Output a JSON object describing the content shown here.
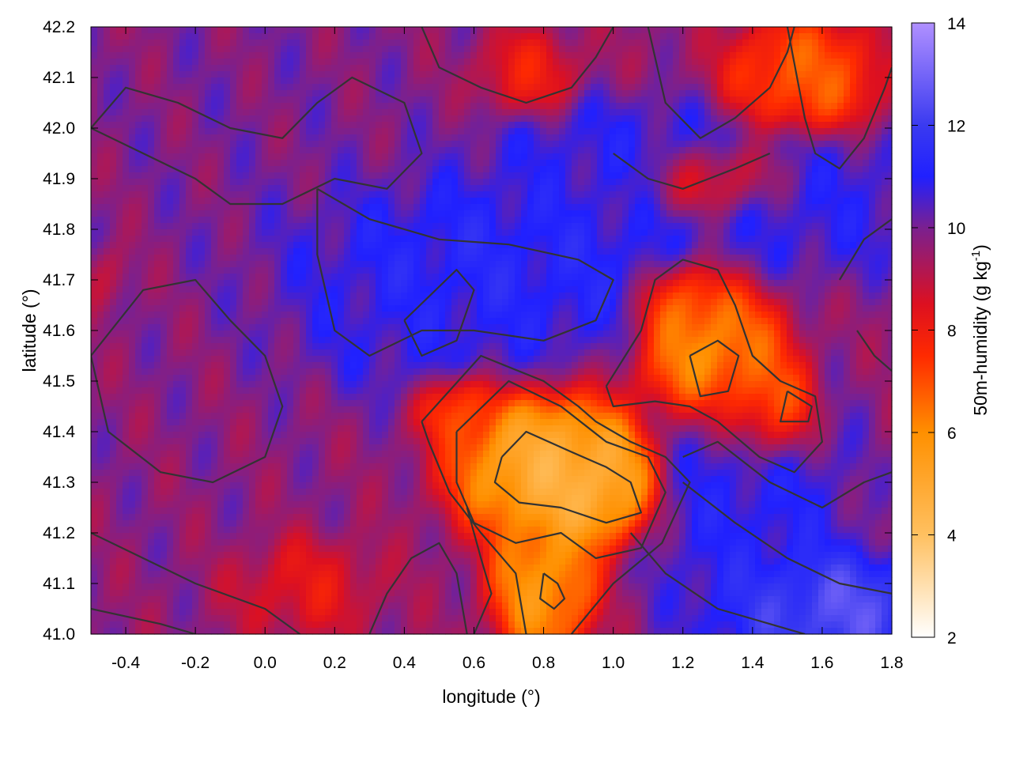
{
  "chart_data": {
    "type": "heatmap",
    "xlabel": "longitude (°)",
    "ylabel": "latitude (°)",
    "colorbar_label_main": "50m-humidity (g kg",
    "colorbar_label_sup": "-1",
    "colorbar_label_close": ")",
    "xlim": [
      -0.5,
      1.8
    ],
    "ylim": [
      41.0,
      42.2
    ],
    "x_ticks": [
      -0.4,
      -0.2,
      0.0,
      0.2,
      0.4,
      0.6,
      0.8,
      1.0,
      1.2,
      1.4,
      1.6,
      1.8
    ],
    "x_tick_labels": [
      "-0.4",
      "-0.2",
      "0.0",
      "0.2",
      "0.4",
      "0.6",
      "0.8",
      "1.0",
      "1.2",
      "1.4",
      "1.6",
      "1.8"
    ],
    "y_ticks": [
      41.0,
      41.1,
      41.2,
      41.3,
      41.4,
      41.5,
      41.6,
      41.7,
      41.8,
      41.9,
      42.0,
      42.1,
      42.2
    ],
    "y_tick_labels": [
      "41.0",
      "41.1",
      "41.2",
      "41.3",
      "41.4",
      "41.5",
      "41.6",
      "41.7",
      "41.8",
      "41.9",
      "42.0",
      "42.1",
      "42.2"
    ],
    "colorbar_range": [
      2,
      14
    ],
    "colorbar_ticks": [
      2,
      4,
      6,
      8,
      10,
      12,
      14
    ],
    "colorbar_tick_labels": [
      "2",
      "4",
      "6",
      "8",
      "10",
      "12",
      "14"
    ],
    "colormap": [
      {
        "v": 2,
        "color": "#ffffff"
      },
      {
        "v": 4,
        "color": "#ffc060"
      },
      {
        "v": 6,
        "color": "#ff9000"
      },
      {
        "v": 7.5,
        "color": "#ff2a00"
      },
      {
        "v": 8.5,
        "color": "#dd1020"
      },
      {
        "v": 10,
        "color": "#7a2090"
      },
      {
        "v": 11,
        "color": "#2020ff"
      },
      {
        "v": 12,
        "color": "#3a3af0"
      },
      {
        "v": 14,
        "color": "#b090ff"
      }
    ],
    "contour_color": "#333333",
    "field_features": [
      {
        "lon": -0.3,
        "lat": 41.45,
        "value": 9.8,
        "sx": 0.45,
        "sy": 0.3
      },
      {
        "lon": 0.0,
        "lat": 41.95,
        "value": 10.0,
        "sx": 0.4,
        "sy": 0.25
      },
      {
        "lon": 0.4,
        "lat": 41.75,
        "value": 11.5,
        "sx": 0.35,
        "sy": 0.12
      },
      {
        "lon": 0.8,
        "lat": 41.72,
        "value": 11.3,
        "sx": 0.35,
        "sy": 0.12
      },
      {
        "lon": 0.35,
        "lat": 41.6,
        "value": 11.0,
        "sx": 0.3,
        "sy": 0.1
      },
      {
        "lon": 1.0,
        "lat": 41.95,
        "value": 11.0,
        "sx": 0.3,
        "sy": 0.08
      },
      {
        "lon": 1.6,
        "lat": 41.85,
        "value": 11.0,
        "sx": 0.25,
        "sy": 0.1
      },
      {
        "lon": 1.4,
        "lat": 41.25,
        "value": 11.2,
        "sx": 0.2,
        "sy": 0.25
      },
      {
        "lon": 1.6,
        "lat": 41.05,
        "value": 13.0,
        "sx": 0.2,
        "sy": 0.08
      },
      {
        "lon": 0.75,
        "lat": 42.1,
        "value": 7.8,
        "sx": 0.1,
        "sy": 0.06
      },
      {
        "lon": 1.55,
        "lat": 42.1,
        "value": 6.5,
        "sx": 0.15,
        "sy": 0.08
      },
      {
        "lon": 1.3,
        "lat": 41.9,
        "value": 7.5,
        "sx": 0.15,
        "sy": 0.05
      },
      {
        "lon": 0.1,
        "lat": 41.1,
        "value": 8.0,
        "sx": 0.15,
        "sy": 0.07
      },
      {
        "lon": 0.8,
        "lat": 41.33,
        "value": 4.3,
        "sx": 0.18,
        "sy": 0.1
      },
      {
        "lon": 0.95,
        "lat": 41.3,
        "value": 4.2,
        "sx": 0.12,
        "sy": 0.08
      },
      {
        "lon": 0.8,
        "lat": 41.1,
        "value": 5.2,
        "sx": 0.1,
        "sy": 0.1
      },
      {
        "lon": 1.3,
        "lat": 41.55,
        "value": 4.6,
        "sx": 0.15,
        "sy": 0.1
      },
      {
        "lon": 1.45,
        "lat": 41.45,
        "value": 5.2,
        "sx": 0.1,
        "sy": 0.08
      },
      {
        "lon": 1.2,
        "lat": 41.65,
        "value": 5.8,
        "sx": 0.1,
        "sy": 0.06
      },
      {
        "lon": 0.55,
        "lat": 41.45,
        "value": 6.5,
        "sx": 0.08,
        "sy": 0.05
      },
      {
        "lon": -0.45,
        "lat": 41.7,
        "value": 8.2,
        "sx": 0.05,
        "sy": 0.05
      }
    ],
    "contours": [
      [
        [
          0.68,
          41.35
        ],
        [
          0.75,
          41.4
        ],
        [
          0.88,
          41.36
        ],
        [
          0.98,
          41.33
        ],
        [
          1.05,
          41.3
        ],
        [
          1.08,
          41.24
        ],
        [
          0.98,
          41.22
        ],
        [
          0.85,
          41.25
        ],
        [
          0.73,
          41.26
        ],
        [
          0.66,
          41.3
        ],
        [
          0.68,
          41.35
        ]
      ],
      [
        [
          0.55,
          41.4
        ],
        [
          0.7,
          41.5
        ],
        [
          0.85,
          41.45
        ],
        [
          0.98,
          41.38
        ],
        [
          1.1,
          41.35
        ],
        [
          1.15,
          41.28
        ],
        [
          1.08,
          41.17
        ],
        [
          0.95,
          41.15
        ],
        [
          0.85,
          41.2
        ],
        [
          0.72,
          41.18
        ],
        [
          0.6,
          41.22
        ],
        [
          0.55,
          41.3
        ],
        [
          0.55,
          41.4
        ]
      ],
      [
        [
          0.45,
          41.42
        ],
        [
          0.62,
          41.55
        ],
        [
          0.8,
          41.5
        ],
        [
          0.9,
          41.45
        ],
        [
          0.95,
          41.42
        ],
        [
          1.05,
          41.38
        ],
        [
          1.15,
          41.35
        ],
        [
          1.22,
          41.3
        ],
        [
          1.14,
          41.18
        ],
        [
          1.0,
          41.1
        ],
        [
          0.88,
          41.0
        ]
      ],
      [
        [
          0.75,
          41.0
        ],
        [
          0.72,
          41.12
        ],
        [
          0.62,
          41.2
        ],
        [
          0.53,
          41.28
        ],
        [
          0.47,
          41.38
        ],
        [
          0.45,
          41.42
        ]
      ],
      [
        [
          0.8,
          41.12
        ],
        [
          0.84,
          41.1
        ],
        [
          0.86,
          41.07
        ],
        [
          0.83,
          41.05
        ],
        [
          0.79,
          41.07
        ],
        [
          0.8,
          41.12
        ]
      ],
      [
        [
          0.98,
          41.49
        ],
        [
          1.08,
          41.6
        ],
        [
          1.12,
          41.7
        ],
        [
          1.2,
          41.74
        ],
        [
          1.3,
          41.72
        ],
        [
          1.35,
          41.65
        ],
        [
          1.4,
          41.55
        ],
        [
          1.48,
          41.5
        ],
        [
          1.58,
          41.47
        ],
        [
          1.6,
          41.38
        ],
        [
          1.52,
          41.32
        ],
        [
          1.42,
          41.35
        ],
        [
          1.3,
          41.42
        ],
        [
          1.22,
          41.45
        ],
        [
          1.12,
          41.46
        ],
        [
          1.0,
          41.45
        ],
        [
          0.98,
          41.49
        ]
      ],
      [
        [
          1.22,
          41.55
        ],
        [
          1.3,
          41.58
        ],
        [
          1.36,
          41.55
        ],
        [
          1.33,
          41.48
        ],
        [
          1.25,
          41.47
        ],
        [
          1.22,
          41.55
        ]
      ],
      [
        [
          1.5,
          41.48
        ],
        [
          1.57,
          41.45
        ],
        [
          1.56,
          41.42
        ],
        [
          1.48,
          41.42
        ],
        [
          1.5,
          41.48
        ]
      ],
      [
        [
          0.15,
          41.88
        ],
        [
          0.3,
          41.82
        ],
        [
          0.5,
          41.78
        ],
        [
          0.7,
          41.77
        ],
        [
          0.9,
          41.74
        ],
        [
          1.0,
          41.7
        ],
        [
          0.95,
          41.62
        ],
        [
          0.8,
          41.58
        ],
        [
          0.6,
          41.6
        ],
        [
          0.45,
          41.6
        ],
        [
          0.3,
          41.55
        ],
        [
          0.2,
          41.6
        ],
        [
          0.15,
          41.75
        ],
        [
          0.15,
          41.88
        ]
      ],
      [
        [
          0.4,
          41.62
        ],
        [
          0.55,
          41.72
        ],
        [
          0.6,
          41.68
        ],
        [
          0.55,
          41.58
        ],
        [
          0.45,
          41.55
        ],
        [
          0.4,
          41.62
        ]
      ],
      [
        [
          -0.5,
          41.55
        ],
        [
          -0.35,
          41.68
        ],
        [
          -0.2,
          41.7
        ],
        [
          -0.1,
          41.62
        ],
        [
          0.0,
          41.55
        ],
        [
          0.05,
          41.45
        ],
        [
          0.0,
          41.35
        ],
        [
          -0.15,
          41.3
        ],
        [
          -0.3,
          41.32
        ],
        [
          -0.45,
          41.4
        ],
        [
          -0.5,
          41.55
        ]
      ],
      [
        [
          -0.5,
          42.0
        ],
        [
          -0.4,
          42.08
        ],
        [
          -0.25,
          42.05
        ],
        [
          -0.1,
          42.0
        ],
        [
          0.05,
          41.98
        ],
        [
          0.15,
          42.05
        ],
        [
          0.25,
          42.1
        ],
        [
          0.4,
          42.05
        ],
        [
          0.45,
          41.95
        ],
        [
          0.35,
          41.88
        ],
        [
          0.2,
          41.9
        ],
        [
          0.05,
          41.85
        ],
        [
          -0.1,
          41.85
        ],
        [
          -0.2,
          41.9
        ],
        [
          -0.35,
          41.95
        ],
        [
          -0.5,
          42.0
        ]
      ],
      [
        [
          0.45,
          42.2
        ],
        [
          0.5,
          42.12
        ],
        [
          0.62,
          42.08
        ],
        [
          0.75,
          42.05
        ],
        [
          0.88,
          42.08
        ],
        [
          0.95,
          42.14
        ],
        [
          1.0,
          42.2
        ]
      ],
      [
        [
          1.1,
          42.2
        ],
        [
          1.15,
          42.05
        ],
        [
          1.25,
          41.98
        ],
        [
          1.35,
          42.02
        ],
        [
          1.45,
          42.08
        ],
        [
          1.5,
          42.15
        ],
        [
          1.52,
          42.2
        ]
      ],
      [
        [
          1.5,
          42.2
        ],
        [
          1.55,
          42.02
        ],
        [
          1.58,
          41.95
        ],
        [
          1.65,
          41.92
        ],
        [
          1.72,
          41.98
        ],
        [
          1.78,
          42.08
        ],
        [
          1.8,
          42.12
        ]
      ],
      [
        [
          -0.5,
          41.2
        ],
        [
          -0.35,
          41.15
        ],
        [
          -0.2,
          41.1
        ],
        [
          0.0,
          41.05
        ],
        [
          0.1,
          41.0
        ]
      ],
      [
        [
          -0.5,
          41.05
        ],
        [
          -0.3,
          41.02
        ],
        [
          -0.2,
          41.0
        ]
      ],
      [
        [
          0.3,
          41.0
        ],
        [
          0.35,
          41.08
        ],
        [
          0.42,
          41.15
        ],
        [
          0.5,
          41.18
        ],
        [
          0.55,
          41.12
        ],
        [
          0.58,
          41.0
        ]
      ],
      [
        [
          1.2,
          41.3
        ],
        [
          1.35,
          41.22
        ],
        [
          1.5,
          41.15
        ],
        [
          1.65,
          41.1
        ],
        [
          1.8,
          41.08
        ]
      ],
      [
        [
          1.2,
          41.35
        ],
        [
          1.3,
          41.38
        ],
        [
          1.45,
          41.3
        ],
        [
          1.6,
          41.25
        ],
        [
          1.72,
          41.3
        ],
        [
          1.8,
          41.32
        ]
      ],
      [
        [
          1.05,
          41.2
        ],
        [
          1.15,
          41.12
        ],
        [
          1.3,
          41.05
        ],
        [
          1.45,
          41.02
        ],
        [
          1.55,
          41.0
        ]
      ],
      [
        [
          0.6,
          41.0
        ],
        [
          0.65,
          41.08
        ],
        [
          0.62,
          41.15
        ],
        [
          0.58,
          41.25
        ]
      ],
      [
        [
          1.7,
          41.6
        ],
        [
          1.75,
          41.55
        ],
        [
          1.8,
          41.52
        ]
      ],
      [
        [
          1.65,
          41.7
        ],
        [
          1.72,
          41.78
        ],
        [
          1.8,
          41.82
        ]
      ],
      [
        [
          1.0,
          41.95
        ],
        [
          1.1,
          41.9
        ],
        [
          1.2,
          41.88
        ],
        [
          1.35,
          41.92
        ],
        [
          1.45,
          41.95
        ]
      ]
    ]
  }
}
